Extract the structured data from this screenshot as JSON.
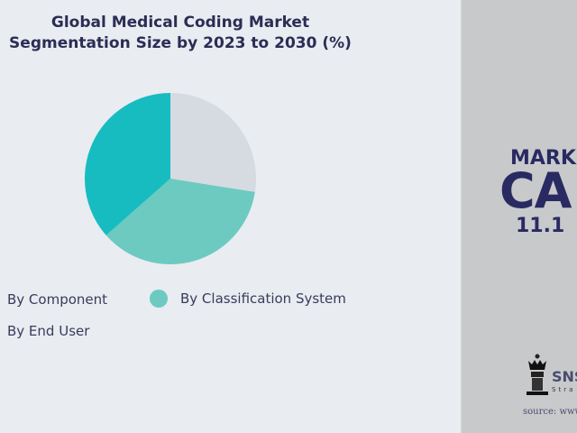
{
  "chart_data": {
    "type": "pie",
    "title": "Global Medical Coding Market Segmentation Size by 2023 to 2030 (%)",
    "title_lines": [
      "Global Medical Coding Market",
      "Segmentation Size by 2023 to 2030 (%)"
    ],
    "slices": [
      {
        "name": "By End User",
        "value": 27.5,
        "color": "#d5dbe0"
      },
      {
        "name": "By Classification System",
        "value": 36,
        "color": "#6ccac1"
      },
      {
        "name": "By Component",
        "value": 36.5,
        "color": "#17bcc0"
      }
    ],
    "legend": [
      "By Component",
      "By Classification System",
      "By End User"
    ],
    "legend_placement": "bottom"
  },
  "side_panel": {
    "label": "MARK",
    "big": "CA",
    "value": "11.1",
    "logo_text": "SNS",
    "logo_sub": "Stra",
    "source": "source: www"
  }
}
